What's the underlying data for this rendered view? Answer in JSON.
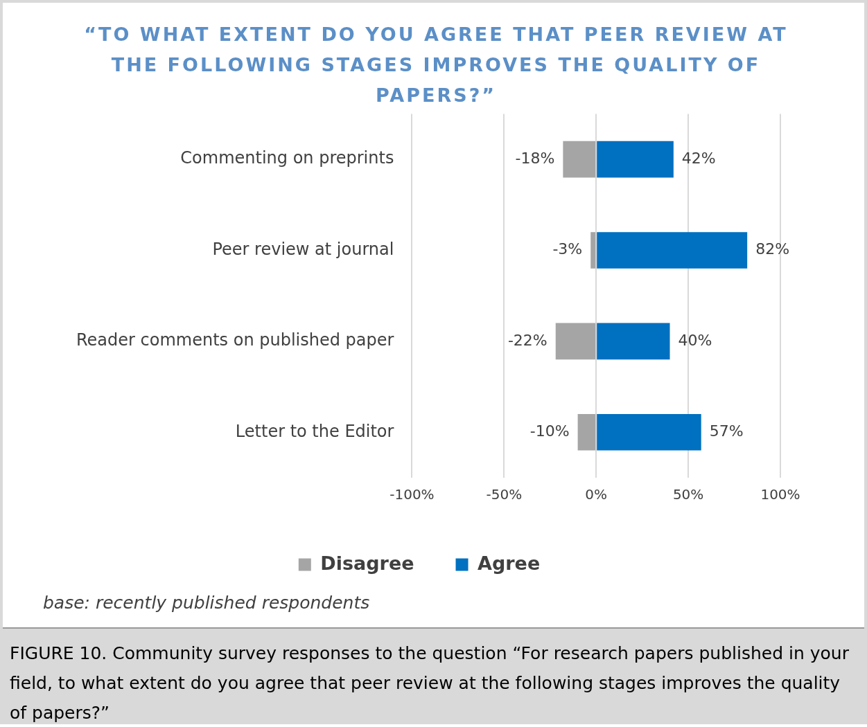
{
  "chart_data": {
    "type": "bar",
    "orientation": "horizontal",
    "stacked": true,
    "title": "“TO WHAT EXTENT DO YOU AGREE THAT PEER REVIEW AT THE FOLLOWING STAGES IMPROVES THE QUALITY OF PAPERS?”",
    "categories": [
      "Commenting on preprints",
      "Peer review at journal",
      "Reader comments on published paper",
      "Letter to the Editor"
    ],
    "series": [
      {
        "name": "Disagree",
        "color": "#a5a5a5",
        "values": [
          -18,
          -3,
          -22,
          -10
        ],
        "value_labels": [
          "-18%",
          "-3%",
          "-22%",
          "-10%"
        ]
      },
      {
        "name": "Agree",
        "color": "#0070c0",
        "values": [
          42,
          82,
          40,
          57
        ],
        "value_labels": [
          "42%",
          "82%",
          "40%",
          "57%"
        ]
      }
    ],
    "xlim": [
      -100,
      100
    ],
    "xticks": [
      {
        "value": -100,
        "label": "-100%"
      },
      {
        "value": -50,
        "label": "-50%"
      },
      {
        "value": 0,
        "label": "0%"
      },
      {
        "value": 50,
        "label": "50%"
      },
      {
        "value": 100,
        "label": "100%"
      }
    ],
    "grid": "x",
    "legend": "bottom",
    "annotations": [
      "base: recently published respondents",
      "FIGURE 10.  Community survey responses to the question “For research papers published in your field, to what extent do you agree that peer review at the following stages improves the quality of papers?”"
    ]
  }
}
